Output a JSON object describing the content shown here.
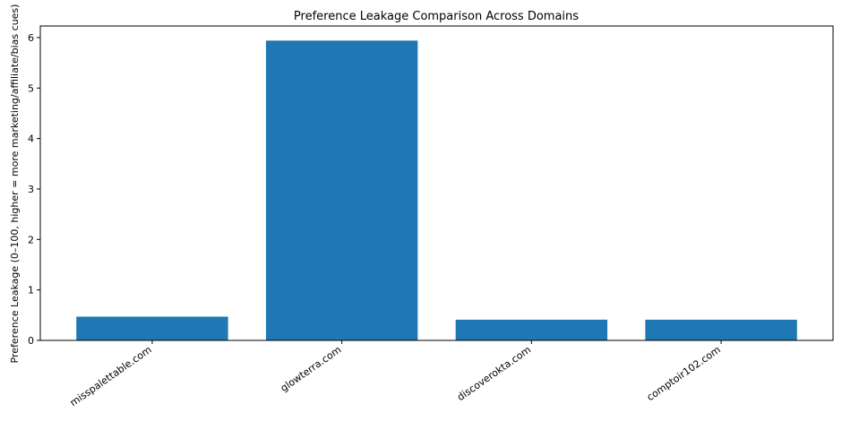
{
  "chart_data": {
    "type": "bar",
    "title": "Preference Leakage Comparison Across Domains",
    "y_label": "Preference Leakage (0–100, higher = more marketing/affiliate/bias cues)",
    "categories": [
      "misspalettable.com",
      "glowterra.com",
      "discoverokta.com",
      "comptoir102.com"
    ],
    "values": [
      0.47,
      5.94,
      0.41,
      0.41
    ],
    "color": "#1f77b4",
    "ylim": [
      0,
      6.23
    ],
    "yticks": [
      0,
      1,
      2,
      3,
      4,
      5,
      6
    ]
  }
}
